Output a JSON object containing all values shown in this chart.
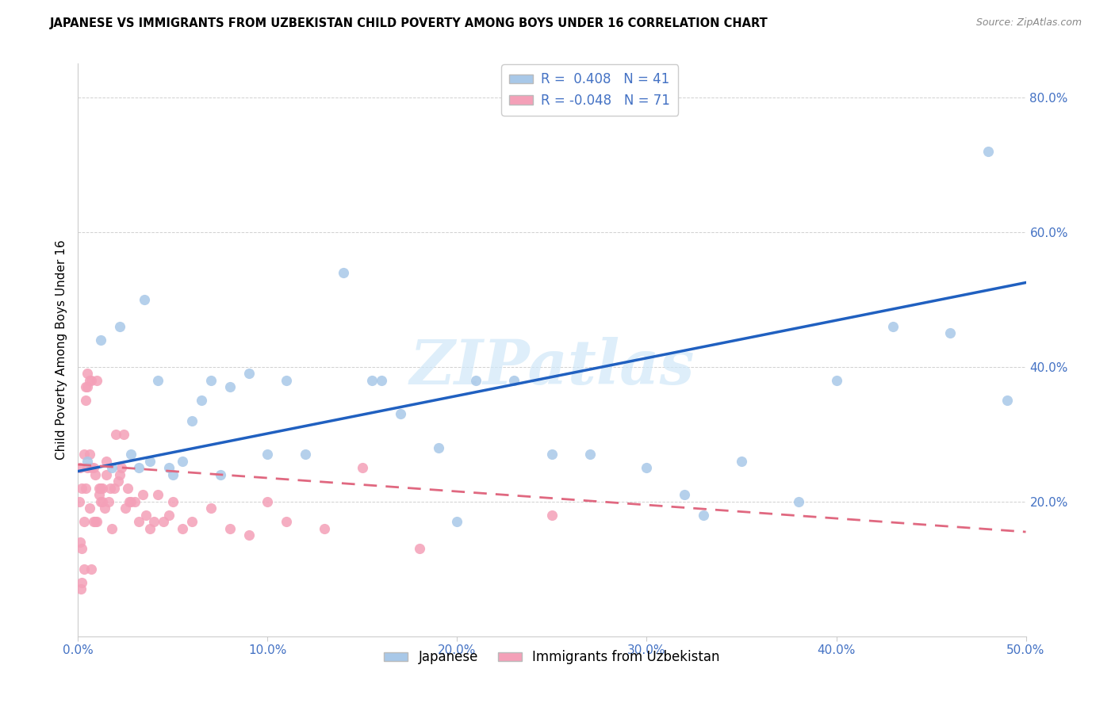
{
  "title": "JAPANESE VS IMMIGRANTS FROM UZBEKISTAN CHILD POVERTY AMONG BOYS UNDER 16 CORRELATION CHART",
  "source": "Source: ZipAtlas.com",
  "ylabel": "Child Poverty Among Boys Under 16",
  "xlim": [
    0.0,
    0.5
  ],
  "ylim": [
    0.0,
    0.85
  ],
  "xticks": [
    0.0,
    0.1,
    0.2,
    0.3,
    0.4,
    0.5
  ],
  "xticklabels": [
    "0.0%",
    "10.0%",
    "20.0%",
    "30.0%",
    "40.0%",
    "50.0%"
  ],
  "yticks": [
    0.0,
    0.2,
    0.4,
    0.6,
    0.8
  ],
  "yticklabels": [
    "",
    "20.0%",
    "40.0%",
    "60.0%",
    "80.0%"
  ],
  "legend_labels": [
    "Japanese",
    "Immigrants from Uzbekistan"
  ],
  "R_japanese": 0.408,
  "N_japanese": 41,
  "R_uzbekistan": -0.048,
  "N_uzbekistan": 71,
  "color_japanese": "#a8c8e8",
  "color_uzbekistan": "#f4a0b8",
  "line_color_japanese": "#2060c0",
  "line_color_uzbekistan": "#e06880",
  "watermark": "ZIPatlas",
  "japanese_x": [
    0.005,
    0.012,
    0.018,
    0.022,
    0.028,
    0.032,
    0.035,
    0.038,
    0.042,
    0.048,
    0.05,
    0.055,
    0.06,
    0.065,
    0.07,
    0.075,
    0.08,
    0.09,
    0.1,
    0.11,
    0.12,
    0.14,
    0.155,
    0.17,
    0.19,
    0.21,
    0.23,
    0.25,
    0.27,
    0.3,
    0.32,
    0.35,
    0.38,
    0.4,
    0.43,
    0.46,
    0.48,
    0.49,
    0.33,
    0.2,
    0.16
  ],
  "japanese_y": [
    0.26,
    0.44,
    0.25,
    0.46,
    0.27,
    0.25,
    0.5,
    0.26,
    0.38,
    0.25,
    0.24,
    0.26,
    0.32,
    0.35,
    0.38,
    0.24,
    0.37,
    0.39,
    0.27,
    0.38,
    0.27,
    0.54,
    0.38,
    0.33,
    0.28,
    0.38,
    0.38,
    0.27,
    0.27,
    0.25,
    0.21,
    0.26,
    0.2,
    0.38,
    0.46,
    0.45,
    0.72,
    0.35,
    0.18,
    0.17,
    0.38
  ],
  "uzbekistan_x": [
    0.0005,
    0.001,
    0.001,
    0.0015,
    0.002,
    0.002,
    0.002,
    0.003,
    0.003,
    0.003,
    0.004,
    0.004,
    0.004,
    0.005,
    0.005,
    0.005,
    0.006,
    0.006,
    0.006,
    0.007,
    0.007,
    0.007,
    0.008,
    0.008,
    0.009,
    0.009,
    0.01,
    0.01,
    0.011,
    0.011,
    0.012,
    0.012,
    0.013,
    0.013,
    0.014,
    0.015,
    0.015,
    0.016,
    0.017,
    0.018,
    0.019,
    0.02,
    0.021,
    0.022,
    0.023,
    0.024,
    0.025,
    0.026,
    0.027,
    0.028,
    0.03,
    0.032,
    0.034,
    0.036,
    0.038,
    0.04,
    0.042,
    0.045,
    0.048,
    0.05,
    0.055,
    0.06,
    0.07,
    0.08,
    0.09,
    0.1,
    0.11,
    0.13,
    0.15,
    0.18,
    0.25
  ],
  "uzbekistan_y": [
    0.2,
    0.14,
    0.25,
    0.07,
    0.13,
    0.08,
    0.22,
    0.17,
    0.1,
    0.27,
    0.35,
    0.22,
    0.37,
    0.37,
    0.39,
    0.25,
    0.19,
    0.27,
    0.38,
    0.1,
    0.25,
    0.38,
    0.17,
    0.25,
    0.17,
    0.24,
    0.17,
    0.38,
    0.21,
    0.22,
    0.2,
    0.22,
    0.22,
    0.2,
    0.19,
    0.24,
    0.26,
    0.2,
    0.22,
    0.16,
    0.22,
    0.3,
    0.23,
    0.24,
    0.25,
    0.3,
    0.19,
    0.22,
    0.2,
    0.2,
    0.2,
    0.17,
    0.21,
    0.18,
    0.16,
    0.17,
    0.21,
    0.17,
    0.18,
    0.2,
    0.16,
    0.17,
    0.19,
    0.16,
    0.15,
    0.2,
    0.17,
    0.16,
    0.25,
    0.13,
    0.18
  ],
  "jp_line_x": [
    0.0,
    0.5
  ],
  "jp_line_y": [
    0.245,
    0.525
  ],
  "uz_line_x": [
    0.0,
    0.5
  ],
  "uz_line_y": [
    0.255,
    0.155
  ]
}
